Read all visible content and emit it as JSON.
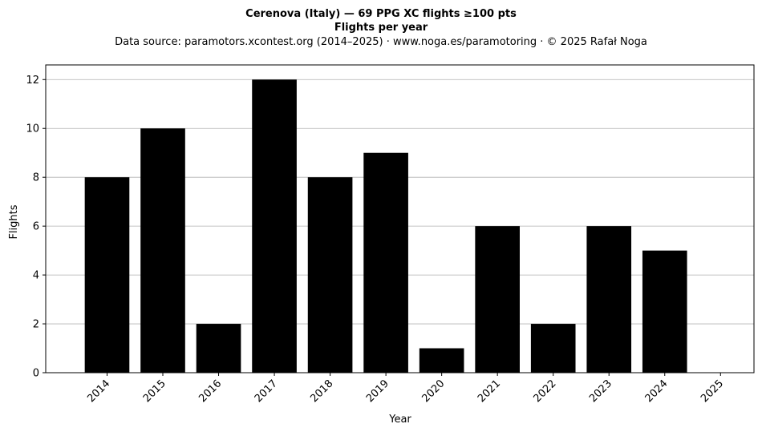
{
  "chart_data": {
    "type": "bar",
    "title": "Cerenova (Italy)  —  69 PPG XC flights ≥100 pts",
    "subtitle": "Flights per year",
    "source": "Data source: paramotors.xcontest.org (2014–2025)  ·  www.noga.es/paramotoring  ·  © 2025 Rafał Noga",
    "xlabel": "Year",
    "ylabel": "Flights",
    "categories": [
      "2014",
      "2015",
      "2016",
      "2017",
      "2018",
      "2019",
      "2020",
      "2021",
      "2022",
      "2023",
      "2024",
      "2025"
    ],
    "values": [
      8,
      10,
      2,
      12,
      8,
      9,
      1,
      6,
      2,
      6,
      5,
      0
    ],
    "ylim": [
      0,
      12.6
    ],
    "yticks": [
      0,
      2,
      4,
      6,
      8,
      10,
      12
    ],
    "grid": "horizontal",
    "bar_color": "#000000",
    "grid_color": "#b0b0b0"
  }
}
